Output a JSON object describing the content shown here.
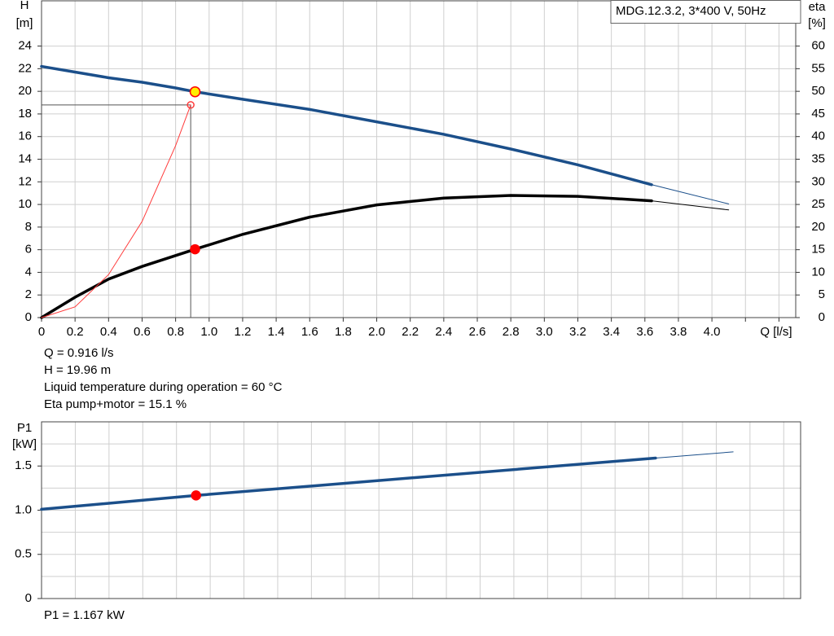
{
  "chart_data": [
    {
      "type": "line",
      "legend_text": "MDG.12.3.2, 3*400 V, 50Hz",
      "ylabel": "H",
      "yunit": "[m]",
      "y2label": "eta",
      "y2unit": "[%]",
      "xlabel": "Q [l/s]",
      "xlim": [
        0,
        4.5
      ],
      "ylim": [
        0,
        28
      ],
      "y2lim": [
        0,
        70
      ],
      "xticks": [
        0,
        0.2,
        0.4,
        0.6,
        0.8,
        {
          "value": 1,
          "label": "1.0"
        },
        1.2,
        1.4,
        1.6,
        1.8,
        {
          "value": 2,
          "label": "2.0"
        },
        2.2,
        2.4,
        2.6,
        2.8,
        {
          "value": 3,
          "label": "3.0"
        },
        3.2,
        3.4,
        3.6,
        3.8,
        {
          "value": 4,
          "label": "4.0"
        }
      ],
      "xminor": [
        4.2,
        4.4
      ],
      "yticks": [
        0,
        2,
        4,
        6,
        8,
        10,
        12,
        14,
        16,
        18,
        20,
        22,
        24
      ],
      "y2ticks": [
        0,
        5,
        10,
        15,
        20,
        25,
        30,
        35,
        40,
        45,
        50,
        55,
        60
      ],
      "grid": true,
      "series": [
        {
          "color": "#1b4f8a",
          "width": 3.5,
          "axis": "y",
          "x": [
            0,
            0.2,
            0.4,
            0.6,
            0.8,
            0.916,
            1.2,
            1.6,
            2.0,
            2.4,
            2.8,
            3.2,
            3.64
          ],
          "values": [
            22.2,
            21.7,
            21.2,
            20.8,
            20.3,
            19.96,
            19.3,
            18.4,
            17.3,
            16.2,
            14.9,
            13.5,
            11.75
          ]
        },
        {
          "color": "#1b4f8a",
          "width": 1,
          "axis": "y",
          "x": [
            3.64,
            4.1
          ],
          "values": [
            11.75,
            10.05
          ]
        },
        {
          "color": "#000000",
          "width": 3.5,
          "axis": "y2",
          "x": [
            0,
            0.2,
            0.4,
            0.6,
            0.916,
            1.2,
            1.6,
            2.0,
            2.4,
            2.8,
            3.2,
            3.64
          ],
          "values": [
            0,
            4.5,
            8.5,
            11.3,
            15.1,
            18.4,
            22.2,
            24.9,
            26.4,
            27.0,
            26.8,
            25.8
          ]
        },
        {
          "color": "#000000",
          "width": 1,
          "axis": "y2",
          "x": [
            3.64,
            4.1
          ],
          "values": [
            25.8,
            23.8
          ]
        },
        {
          "color": "#ff3b3b",
          "width": 1,
          "axis": "y",
          "x": [
            0,
            0.2,
            0.4,
            0.6,
            0.8,
            0.89
          ],
          "values": [
            0,
            0.95,
            3.8,
            8.5,
            15.2,
            18.8
          ]
        }
      ],
      "guides": [
        {
          "x": 0.89,
          "y": 18.8,
          "color": "#555555"
        }
      ],
      "markers": [
        {
          "x": 0.89,
          "y": 18.8,
          "axis": "y",
          "fill": "none",
          "stroke": "#ff3b3b",
          "r": 4
        },
        {
          "x": 0.916,
          "y": 19.96,
          "axis": "y",
          "fill": "#ffee00",
          "stroke": "#ff0000",
          "r": 6
        },
        {
          "x": 0.916,
          "y": 15.1,
          "axis": "y2",
          "fill": "#ff0000",
          "stroke": "#ff0000",
          "r": 5.5
        }
      ],
      "notes": [
        "Q = 0.916 l/s",
        "H = 19.96 m",
        "Liquid temperature during operation = 60 °C",
        "Eta pump+motor = 15.1 %"
      ]
    },
    {
      "type": "line",
      "ylabel": "P1",
      "yunit": "[kW]",
      "xlim": [
        0,
        4.5
      ],
      "ylim": [
        0,
        2
      ],
      "xgrid": [
        0,
        0.2,
        0.4,
        0.6,
        0.8,
        1,
        1.2,
        1.4,
        1.6,
        1.8,
        2,
        2.2,
        2.4,
        2.6,
        2.8,
        3,
        3.2,
        3.4,
        3.6,
        3.8,
        4,
        4.2,
        4.4
      ],
      "yticks": [
        0,
        0.5,
        {
          "value": 1,
          "label": "1.0"
        },
        1.5
      ],
      "yminor": [
        0.25,
        0.75,
        1.25,
        1.75
      ],
      "grid": true,
      "series": [
        {
          "color": "#1b4f8a",
          "width": 3.5,
          "axis": "y",
          "x": [
            0,
            0.916,
            3.64
          ],
          "values": [
            1.01,
            1.167,
            1.59
          ]
        },
        {
          "color": "#1b4f8a",
          "width": 1,
          "axis": "y",
          "x": [
            3.64,
            4.1
          ],
          "values": [
            1.59,
            1.66
          ]
        }
      ],
      "markers": [
        {
          "x": 0.916,
          "y": 1.167,
          "axis": "y",
          "fill": "#ff0000",
          "stroke": "#ff0000",
          "r": 5.5
        }
      ],
      "notes": [
        "P1 = 1.167 kW"
      ]
    }
  ]
}
